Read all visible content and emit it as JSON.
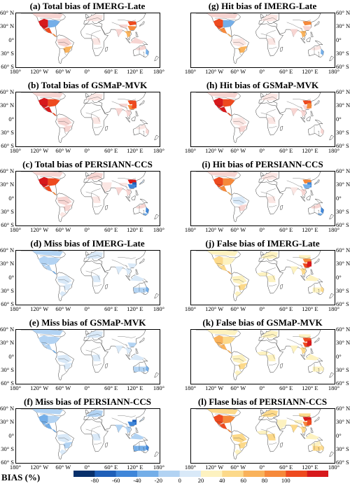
{
  "panels": [
    {
      "id": "a",
      "title": "(a) Total bias of IMERG-Late",
      "pattern": "total-imerg"
    },
    {
      "id": "b",
      "title": "(b) Total bias of GSMaP-MVK",
      "pattern": "total-gsmap"
    },
    {
      "id": "c",
      "title": "(c) Total bias of PERSIANN-CCS",
      "pattern": "total-persiann"
    },
    {
      "id": "d",
      "title": "(d) Miss bias of IMERG-Late",
      "pattern": "miss-imerg"
    },
    {
      "id": "e",
      "title": "(e) Miss bias of GSMaP-MVK",
      "pattern": "miss-gsmap"
    },
    {
      "id": "f",
      "title": "(f) Miss bias of PERSIANN-CCS",
      "pattern": "miss-persiann"
    },
    {
      "id": "g",
      "title": "(g) Hit bias of IMERG-Late",
      "pattern": "hit-imerg"
    },
    {
      "id": "h",
      "title": "(h) Hit bias of GSMaP-MVK",
      "pattern": "hit-gsmap"
    },
    {
      "id": "i",
      "title": "(i) Hit bias of PERSIANN-CCS",
      "pattern": "hit-persiann"
    },
    {
      "id": "j",
      "title": "(j) False bias of IMERG-Late",
      "pattern": "false-imerg"
    },
    {
      "id": "k",
      "title": "(k) False bias of GSMaP-MVK",
      "pattern": "false-gsmap"
    },
    {
      "id": "l",
      "title": "(l) Flase bias of PERSIANN-CCS",
      "pattern": "false-persiann"
    }
  ],
  "lat_ticks": [
    "60° N",
    "30° N",
    "0°",
    "30° S",
    "60° S"
  ],
  "lon_ticks": [
    "180°",
    "120° W",
    "60° W",
    "0°",
    "60° E",
    "120° E",
    "180°"
  ],
  "colorbar": {
    "label": "BIAS (%)",
    "ticks": [
      "-80",
      "-60",
      "-40",
      "-20",
      "0",
      "20",
      "40",
      "60",
      "80",
      "100"
    ],
    "colors": [
      "#08306b",
      "#1f5fb8",
      "#3f86d9",
      "#74aee8",
      "#b2d3f3",
      "#d9e9f8",
      "#fdf2c0",
      "#fcd98a",
      "#f9b25b",
      "#f6893b",
      "#ee4a1f",
      "#d7191c"
    ]
  }
}
